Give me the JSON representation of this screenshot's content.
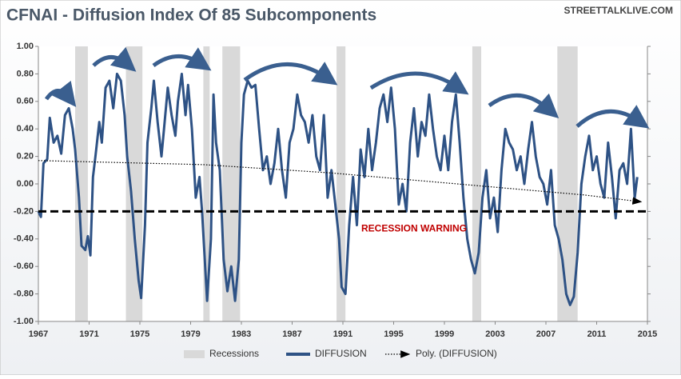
{
  "chart_data": {
    "type": "line",
    "title": "CFNAI - Diffusion Index Of 85 Subcomponents",
    "source": "STREETTALKLIVE.COM",
    "xlim": [
      1967,
      2015
    ],
    "xticks": [
      1967,
      1971,
      1975,
      1979,
      1983,
      1987,
      1991,
      1995,
      1999,
      2003,
      2007,
      2011,
      2015
    ],
    "ylim": [
      -1,
      1
    ],
    "yticks": [
      {
        "value": -1,
        "label": "-1.00"
      },
      {
        "value": -0.8,
        "label": "-0.80"
      },
      {
        "value": -0.6,
        "label": "-0.60"
      },
      {
        "value": -0.4,
        "label": "-0.40"
      },
      {
        "value": -0.2,
        "label": "-0.20"
      },
      {
        "value": 0,
        "label": "0.00"
      },
      {
        "value": 0.2,
        "label": "0.20"
      },
      {
        "value": 0.4,
        "label": "0.40"
      },
      {
        "value": 0.6,
        "label": "0.60"
      },
      {
        "value": 0.8,
        "label": "0.80"
      },
      {
        "value": 1,
        "label": "1.00"
      }
    ],
    "recessions_name": "Recessions",
    "recessions_color": "#d9d9d9",
    "recessions": [
      [
        1969.9,
        1970.9
      ],
      [
        1973.9,
        1975.2
      ],
      [
        1980.0,
        1980.5
      ],
      [
        1981.5,
        1982.9
      ],
      [
        1990.5,
        1991.2
      ],
      [
        2001.2,
        2001.9
      ],
      [
        2007.9,
        2009.5
      ]
    ],
    "threshold": -0.2,
    "threshold_label": "RECESSION WARNING",
    "series": [
      {
        "name": "DIFFUSION",
        "color": "#2e5285",
        "x": [
          1967.0,
          1967.2,
          1967.4,
          1967.7,
          1967.9,
          1968.2,
          1968.5,
          1968.8,
          1969.1,
          1969.4,
          1969.7,
          1969.9,
          1970.2,
          1970.4,
          1970.7,
          1970.9,
          1971.1,
          1971.3,
          1971.5,
          1971.8,
          1972.0,
          1972.3,
          1972.6,
          1972.9,
          1973.2,
          1973.5,
          1973.8,
          1974.0,
          1974.3,
          1974.6,
          1974.9,
          1975.1,
          1975.4,
          1975.6,
          1975.9,
          1976.1,
          1976.4,
          1976.7,
          1976.9,
          1977.2,
          1977.5,
          1977.8,
          1978.0,
          1978.3,
          1978.6,
          1978.8,
          1979.1,
          1979.4,
          1979.7,
          1979.9,
          1980.3,
          1980.6,
          1980.8,
          1981.0,
          1981.3,
          1981.6,
          1981.9,
          1982.2,
          1982.5,
          1982.8,
          1983.0,
          1983.2,
          1983.5,
          1983.8,
          1984.1,
          1984.4,
          1984.7,
          1985.0,
          1985.3,
          1985.6,
          1985.9,
          1986.2,
          1986.5,
          1986.8,
          1987.1,
          1987.4,
          1987.7,
          1988.0,
          1988.3,
          1988.6,
          1988.9,
          1989.2,
          1989.5,
          1989.8,
          1990.1,
          1990.4,
          1990.7,
          1990.9,
          1991.2,
          1991.5,
          1991.8,
          1992.1,
          1992.4,
          1992.7,
          1993.0,
          1993.3,
          1993.6,
          1993.9,
          1994.2,
          1994.5,
          1994.8,
          1995.1,
          1995.4,
          1995.7,
          1996.0,
          1996.3,
          1996.6,
          1996.9,
          1997.2,
          1997.5,
          1997.8,
          1998.1,
          1998.4,
          1998.7,
          1999.0,
          1999.3,
          1999.6,
          1999.9,
          2000.2,
          2000.5,
          2000.8,
          2001.1,
          2001.4,
          2001.7,
          2002.0,
          2002.3,
          2002.6,
          2002.9,
          2003.2,
          2003.5,
          2003.8,
          2004.1,
          2004.4,
          2004.7,
          2005.0,
          2005.3,
          2005.6,
          2005.9,
          2006.2,
          2006.5,
          2006.8,
          2007.1,
          2007.4,
          2007.7,
          2008.0,
          2008.3,
          2008.6,
          2008.9,
          2009.2,
          2009.5,
          2009.8,
          2010.1,
          2010.4,
          2010.7,
          2011.0,
          2011.3,
          2011.6,
          2011.9,
          2012.2,
          2012.5,
          2012.8,
          2013.1,
          2013.4,
          2013.7,
          2014.0,
          2014.2
        ],
        "values": [
          -0.2,
          -0.24,
          0.15,
          0.18,
          0.48,
          0.3,
          0.35,
          0.22,
          0.5,
          0.55,
          0.4,
          0.25,
          -0.1,
          -0.45,
          -0.48,
          -0.38,
          -0.52,
          0.05,
          0.2,
          0.45,
          0.3,
          0.7,
          0.75,
          0.55,
          0.8,
          0.75,
          0.5,
          0.2,
          -0.05,
          -0.4,
          -0.7,
          -0.83,
          -0.3,
          0.3,
          0.55,
          0.75,
          0.45,
          0.2,
          0.4,
          0.7,
          0.5,
          0.35,
          0.6,
          0.8,
          0.5,
          0.72,
          0.4,
          -0.1,
          0.05,
          -0.2,
          -0.85,
          -0.4,
          0.65,
          0.3,
          0.1,
          -0.55,
          -0.78,
          -0.6,
          -0.85,
          -0.55,
          0.3,
          0.65,
          0.75,
          0.7,
          0.72,
          0.4,
          0.1,
          0.2,
          0.0,
          0.15,
          0.4,
          0.1,
          -0.1,
          0.3,
          0.4,
          0.65,
          0.5,
          0.45,
          0.3,
          0.5,
          0.2,
          0.1,
          0.5,
          -0.1,
          0.1,
          -0.15,
          -0.4,
          -0.75,
          -0.8,
          -0.3,
          0.05,
          -0.3,
          0.25,
          0.05,
          0.4,
          0.1,
          0.3,
          0.55,
          0.65,
          0.45,
          0.7,
          0.4,
          -0.15,
          0.0,
          -0.2,
          0.3,
          0.55,
          0.2,
          0.45,
          0.35,
          0.65,
          0.4,
          0.2,
          0.1,
          0.35,
          0.1,
          0.45,
          0.65,
          0.3,
          -0.1,
          -0.4,
          -0.55,
          -0.65,
          -0.5,
          -0.1,
          0.1,
          -0.25,
          -0.1,
          -0.35,
          0.1,
          0.4,
          0.3,
          0.25,
          0.1,
          0.2,
          0.0,
          0.25,
          0.45,
          0.2,
          0.05,
          0.0,
          -0.15,
          0.1,
          -0.3,
          -0.4,
          -0.55,
          -0.8,
          -0.88,
          -0.82,
          -0.5,
          0.0,
          0.2,
          0.35,
          0.1,
          0.2,
          0.0,
          -0.1,
          0.3,
          0.05,
          -0.25,
          0.1,
          0.15,
          0.0,
          0.4,
          -0.1,
          0.05
        ]
      },
      {
        "name": "Poly. (DIFFUSION)",
        "color": "#000000",
        "x": [
          1967,
          1980,
          1990,
          2000,
          2010,
          2014.5
        ],
        "values": [
          0.17,
          0.14,
          0.08,
          0.0,
          -0.08,
          -0.13
        ]
      }
    ]
  }
}
